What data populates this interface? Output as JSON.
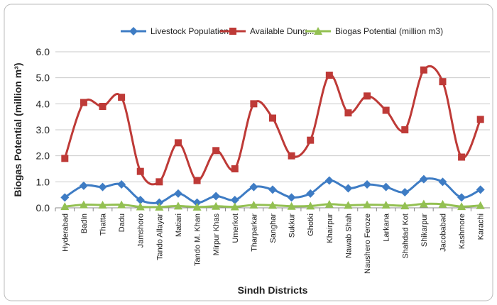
{
  "chart_data": {
    "type": "line",
    "x_label": "Sindh Districts",
    "y_label": "Biogas Potential (million m³)",
    "categories": [
      "Hyderabad",
      "Badin",
      "Thatta",
      "Dadu",
      "Jamshoro",
      "Tando Allayar",
      "Matiari",
      "Tando M. Khan",
      "Mirpur Khas",
      "Umerkot",
      "Tharparkar",
      "Sanghar",
      "Sukkur",
      "Ghotki",
      "Khairpur",
      "Nawab Shah",
      "Naushero Feroze",
      "Larkana",
      "Shahdad Kot",
      "Shikarpur",
      "Jacobabad",
      "Kashmore",
      "Karachi"
    ],
    "series": [
      {
        "name": "Livestock Population...",
        "color": "#3e7cc4",
        "marker": "diamond",
        "values": [
          0.4,
          0.85,
          0.8,
          0.9,
          0.3,
          0.2,
          0.55,
          0.2,
          0.45,
          0.3,
          0.8,
          0.7,
          0.4,
          0.55,
          1.05,
          0.75,
          0.9,
          0.8,
          0.6,
          1.1,
          1.0,
          0.4,
          0.7
        ]
      },
      {
        "name": "Available Dung...",
        "color": "#be3a37",
        "marker": "square",
        "values": [
          1.9,
          4.05,
          3.9,
          4.25,
          1.4,
          1.0,
          2.5,
          1.05,
          2.2,
          1.5,
          4.0,
          3.45,
          2.0,
          2.6,
          5.1,
          3.65,
          4.3,
          3.75,
          3.0,
          5.3,
          4.85,
          1.95,
          3.4
        ]
      },
      {
        "name": "Biogas Potential (million m3)",
        "color": "#93c052",
        "marker": "triangle",
        "values": [
          0.05,
          0.12,
          0.11,
          0.12,
          0.04,
          0.03,
          0.07,
          0.03,
          0.06,
          0.04,
          0.11,
          0.1,
          0.06,
          0.07,
          0.14,
          0.1,
          0.12,
          0.11,
          0.08,
          0.15,
          0.14,
          0.05,
          0.09
        ]
      }
    ],
    "ylim": [
      0,
      6
    ],
    "yticks": [
      {
        "value": 0,
        "label": "0.0"
      },
      {
        "value": 1,
        "label": "1.0"
      },
      {
        "value": 2,
        "label": "2.0"
      },
      {
        "value": 3,
        "label": "3.0"
      },
      {
        "value": 4,
        "label": "4.0"
      },
      {
        "value": 5,
        "label": "5.0"
      },
      {
        "value": 6,
        "label": "6.0"
      }
    ],
    "grid": true,
    "legend": "top"
  }
}
